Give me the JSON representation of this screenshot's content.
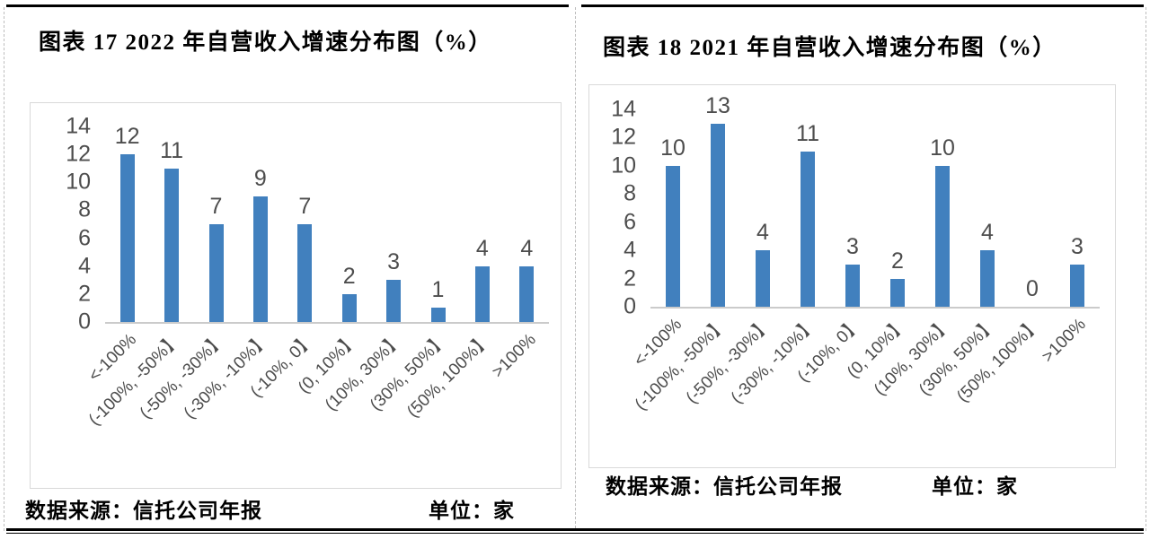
{
  "colors": {
    "bar_blue": "#4180BE",
    "axis_line_gray": "#CBCBCB",
    "label_gray": "#4D4D4D"
  },
  "chart_data": [
    {
      "type": "bar",
      "title": "图表 17  2022 年自营收入增速分布图（%）",
      "categories": [
        "<-100%",
        "(-100%, -50%】",
        "(-50%, -30%】",
        "(-30%, -10%】",
        "(-10%, 0】",
        "(0, 10%】",
        "(10%, 30%】",
        "(30%, 50%】",
        "(50%, 100%】",
        ">100%"
      ],
      "values": [
        12,
        11,
        7,
        9,
        7,
        2,
        3,
        1,
        4,
        4
      ],
      "ylim": [
        0,
        14
      ],
      "yticks": [
        0,
        2,
        4,
        6,
        8,
        10,
        12,
        14
      ],
      "grid": false,
      "legend": "none",
      "bar_color": "#4180BE",
      "source": "数据来源：信托公司年报",
      "unit": "单位：家"
    },
    {
      "type": "bar",
      "title": "图表 18  2021 年自营收入增速分布图（%）",
      "categories": [
        "<-100%",
        "(-100%, -50%】",
        "(-50%, -30%】",
        "(-30%, -10%】",
        "(-10%, 0】",
        "(0, 10%】",
        "(10%, 30%】",
        "(30%, 50%】",
        "(50%, 100%】",
        ">100%"
      ],
      "values": [
        10,
        13,
        4,
        11,
        3,
        2,
        10,
        4,
        0,
        3
      ],
      "ylim": [
        0,
        14
      ],
      "yticks": [
        0,
        2,
        4,
        6,
        8,
        10,
        12,
        14
      ],
      "grid": false,
      "legend": "none",
      "bar_color": "#4180BE",
      "source": "数据来源：信托公司年报",
      "unit": "单位：家"
    }
  ]
}
